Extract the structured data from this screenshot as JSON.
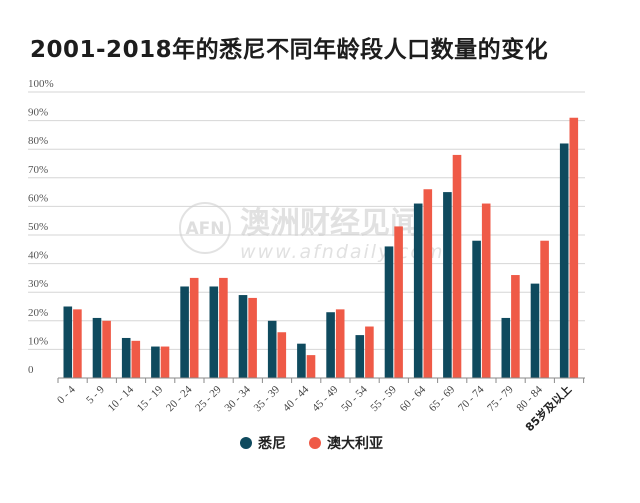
{
  "chart_data": {
    "type": "bar",
    "title": "2001-2018年的悉尼不同年龄段人口数量的变化",
    "categories": [
      "0 - 4",
      "5 - 9",
      "10 - 14",
      "15 - 19",
      "20 - 24",
      "25 - 29",
      "30 - 34",
      "35 - 39",
      "40 - 44",
      "45 - 49",
      "50 - 54",
      "55 - 59",
      "60 - 64",
      "65 - 69",
      "70 - 74",
      "75 - 79",
      "80 - 84",
      "85岁及以上"
    ],
    "series": [
      {
        "name": "悉尼",
        "color": "#0f4a5e",
        "values": [
          25,
          21,
          14,
          11,
          32,
          32,
          29,
          20,
          12,
          23,
          15,
          46,
          61,
          65,
          48,
          21,
          33,
          82
        ]
      },
      {
        "name": "澳大利亚",
        "color": "#ef5a47",
        "values": [
          24,
          20,
          13,
          11,
          35,
          35,
          28,
          16,
          8,
          24,
          18,
          53,
          66,
          78,
          61,
          36,
          48,
          91
        ]
      }
    ],
    "y_ticks": [
      "0",
      "10%",
      "20%",
      "30%",
      "40%",
      "50%",
      "60%",
      "70%",
      "80%",
      "90%",
      "100%"
    ],
    "ylim": [
      0,
      100
    ],
    "xlabel": "",
    "ylabel": "",
    "grid": true,
    "legend_position": "bottom-center"
  },
  "watermark": {
    "logo": "AFN",
    "text": "澳洲财经见闻",
    "url": "www.afndaily.com"
  }
}
